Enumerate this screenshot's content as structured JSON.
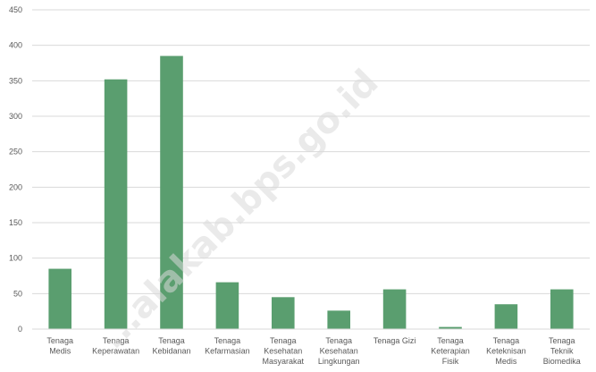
{
  "chart_data": {
    "type": "bar",
    "title": "",
    "xlabel": "",
    "ylabel": "",
    "ylim": [
      0,
      450
    ],
    "yticks": [
      0,
      50,
      100,
      150,
      200,
      250,
      300,
      350,
      400,
      450
    ],
    "grid": true,
    "legend": "none",
    "bar_color": "#5a9e6f",
    "categories": [
      [
        "Tenaga",
        "Medis"
      ],
      [
        "Tenaga",
        "Keperawatan"
      ],
      [
        "Tenaga",
        "Kebidanan"
      ],
      [
        "Tenaga",
        "Kefarmasian"
      ],
      [
        "Tenaga",
        "Kesehatan",
        "Masyarakat"
      ],
      [
        "Tenaga",
        "Kesehatan",
        "Lingkungan"
      ],
      [
        "Tenaga Gizi"
      ],
      [
        "Tenaga",
        "Keterapian",
        "Fisik"
      ],
      [
        "Tenaga",
        "Keteknisan",
        "Medis"
      ],
      [
        "Tenaga",
        "Teknik",
        "Biomedika"
      ]
    ],
    "values": [
      85,
      352,
      385,
      66,
      45,
      26,
      56,
      3,
      35,
      56
    ]
  },
  "watermark": "...alakab.bps.go.id"
}
